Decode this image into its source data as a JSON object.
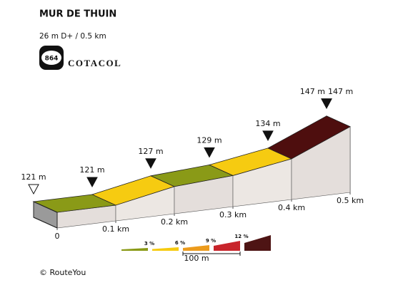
{
  "chart_data": {
    "type": "profile",
    "title": "MUR DE THUIN",
    "subtitle": "26 m D+ / 0.5 km",
    "badge": "864",
    "brand": "COTACOL",
    "x": [
      0,
      0.1,
      0.2,
      0.3,
      0.4,
      0.5,
      0.5
    ],
    "values": [
      121,
      121,
      127,
      129,
      134,
      147,
      147
    ],
    "value_labels": [
      "121 m",
      "121 m",
      "127 m",
      "129 m",
      "134 m",
      "147 m",
      "147 m"
    ],
    "segment_colors": [
      "#8a9a17",
      "#f6cb11",
      "#8a9a17",
      "#f6cb11",
      "#4e0e0e"
    ],
    "xticks": [
      0,
      {
        "value": 0.1,
        "label": "0.1 km"
      },
      {
        "value": 0.2,
        "label": "0.2 km"
      },
      {
        "value": 0.3,
        "label": "0.3 km"
      },
      {
        "value": 0.4,
        "label": "0.4 km"
      },
      {
        "value": 0.5,
        "label": "0.5 km"
      }
    ],
    "legend": {
      "labels": [
        "3 %",
        "6 %",
        "9 %",
        "12 %"
      ],
      "colors": [
        "#8a9a17",
        "#f6cb11",
        "#ec9b1c",
        "#c8242b",
        "#4e1414"
      ]
    },
    "scale_label": "100 m",
    "credit": "© RouteYou"
  }
}
